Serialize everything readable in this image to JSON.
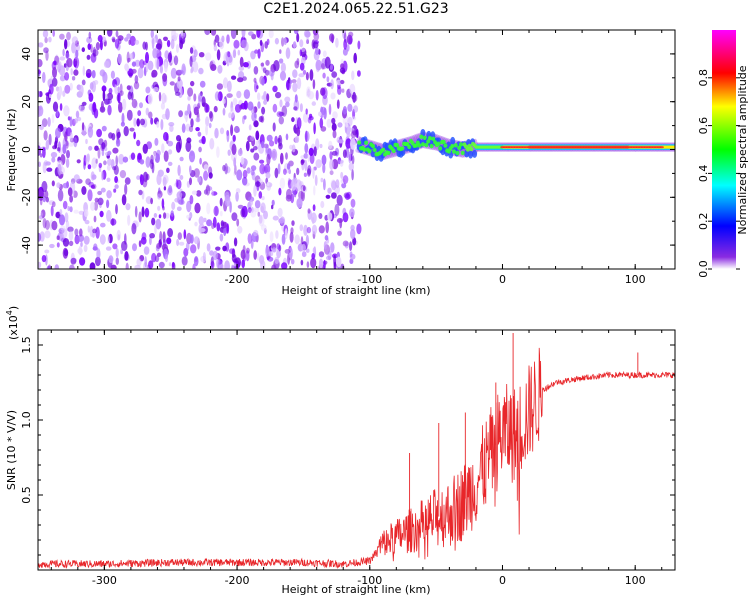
{
  "title": "C2E1.2024.065.22.51.G23",
  "chart_data": [
    {
      "type": "heatmap",
      "xlabel": "Height of straight line (km)",
      "ylabel": "Frequency (Hz)",
      "xlim": [
        -350,
        130
      ],
      "ylim": [
        -50,
        50
      ],
      "x_ticks": [
        -300,
        -200,
        -100,
        0,
        100
      ],
      "y_ticks": [
        -40,
        -20,
        0,
        20,
        40
      ],
      "colorbar": {
        "label": "Normalized spectral amplitude",
        "range": [
          0,
          1
        ],
        "ticks": [
          "0.0",
          "0.2",
          "0.4",
          "0.6",
          "0.8"
        ],
        "colors": [
          "#ffffff",
          "#7b00ff",
          "#0000ff",
          "#00ffff",
          "#00ff00",
          "#ffff00",
          "#ff0000",
          "#ff00ff"
        ]
      },
      "signal_ridge": {
        "x": [
          -108,
          -90,
          -70,
          -60,
          -50,
          -40,
          -30,
          -20,
          -10,
          0,
          20,
          40,
          60,
          80,
          100,
          130
        ],
        "y": [
          2,
          -1,
          2,
          4,
          3,
          1,
          0,
          1,
          1,
          1,
          1,
          1,
          1,
          1,
          1,
          1
        ]
      },
      "noise_region": {
        "x": [
          -350,
          -108
        ],
        "y": [
          -50,
          50
        ]
      }
    },
    {
      "type": "line",
      "xlabel": "Height of straight line (km)",
      "ylabel": "SNR (10 * V/V)",
      "multiplier_label": "(x10",
      "multiplier_exp": "4",
      "multiplier_close": ")",
      "xlim": [
        -350,
        130
      ],
      "ylim": [
        0,
        1.6
      ],
      "x_ticks": [
        -300,
        -200,
        -100,
        0,
        100
      ],
      "y_ticks": [
        "0.5",
        "1.0",
        "1.5"
      ],
      "y_tick_values": [
        0.5,
        1.0,
        1.5
      ],
      "series": [
        {
          "color": "#e8262a",
          "x": [
            -350,
            -300,
            -250,
            -200,
            -150,
            -120,
            -100,
            -90,
            -80,
            -70,
            -60,
            -50,
            -40,
            -30,
            -20,
            -10,
            0,
            10,
            20,
            30,
            40,
            60,
            80,
            100,
            130
          ],
          "y": [
            0.04,
            0.04,
            0.05,
            0.05,
            0.05,
            0.04,
            0.06,
            0.18,
            0.22,
            0.26,
            0.3,
            0.35,
            0.38,
            0.45,
            0.58,
            0.75,
            0.92,
            0.9,
            1.05,
            1.2,
            1.25,
            1.28,
            1.3,
            1.3,
            1.3
          ]
        }
      ]
    }
  ]
}
